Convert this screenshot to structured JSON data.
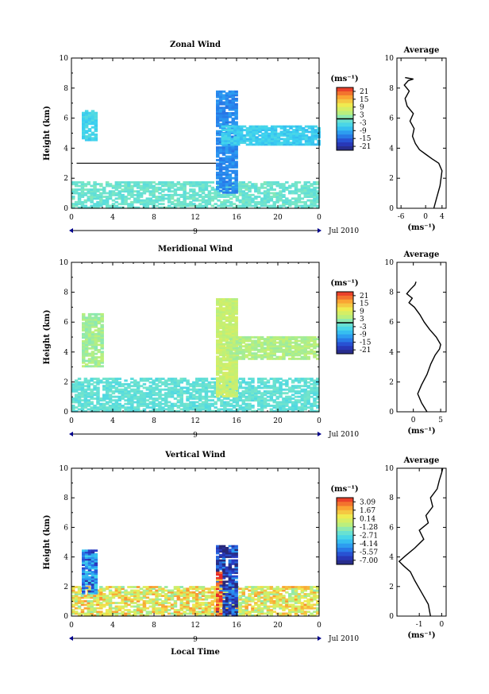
{
  "figure": {
    "xlabel_bottom": "Local Time",
    "date_label": "Jul 2010",
    "day_marker": "9",
    "x_ticks": [
      "0",
      "4",
      "8",
      "12",
      "16",
      "20",
      "0"
    ],
    "unit_label": "(ms⁻¹)"
  },
  "chart_data": [
    {
      "type": "heatmap",
      "title": "Zonal Wind",
      "xlabel": "",
      "ylabel": "Height (km)",
      "xlim": [
        0,
        24
      ],
      "ylim": [
        0,
        10
      ],
      "y_ticks": [
        0,
        2,
        4,
        6,
        8,
        10
      ],
      "colorbar": {
        "ticks": [
          "21",
          "15",
          "9",
          "3",
          "-3",
          "-9",
          "-15",
          "-21"
        ],
        "range": [
          -24,
          24
        ],
        "zero_line": 0
      },
      "reference_line_height": 3.0,
      "features": [
        {
          "x": [
            0,
            24
          ],
          "y": [
            0,
            1.8
          ],
          "value": -1,
          "desc": "low-level band"
        },
        {
          "x": [
            1,
            2.5
          ],
          "y": [
            4.5,
            6.5
          ],
          "value": -5
        },
        {
          "x": [
            14,
            16
          ],
          "y": [
            1,
            7.8
          ],
          "value": -12
        },
        {
          "x": [
            14.5,
            24
          ],
          "y": [
            4.2,
            5.5
          ],
          "value": -6
        }
      ]
    },
    {
      "type": "line",
      "title": "Average",
      "xlabel": "(ms⁻¹)",
      "ylabel": "",
      "xlim": [
        -7,
        5
      ],
      "ylim": [
        0,
        10
      ],
      "x_ticks": [
        -6,
        0,
        4
      ],
      "y_ticks": [
        0,
        2,
        4,
        6,
        8,
        10
      ],
      "profile": {
        "x": [
          2.0,
          2.8,
          3.5,
          4.0,
          3.2,
          1.5,
          0.0,
          -1.5,
          -2.5,
          -3.2,
          -2.8,
          -3.8,
          -3.0,
          -4.5,
          -5.0,
          -4.0,
          -5.2,
          -4.2,
          -3.0,
          -5.0
        ],
        "y": [
          0.0,
          0.8,
          1.5,
          2.5,
          3.0,
          3.3,
          3.6,
          3.9,
          4.3,
          4.8,
          5.3,
          5.8,
          6.3,
          6.8,
          7.3,
          7.8,
          8.2,
          8.5,
          8.6,
          8.7
        ]
      }
    },
    {
      "type": "heatmap",
      "title": "Meridional Wind",
      "xlabel": "",
      "ylabel": "Height (km)",
      "xlim": [
        0,
        24
      ],
      "ylim": [
        0,
        10
      ],
      "y_ticks": [
        0,
        2,
        4,
        6,
        8,
        10
      ],
      "colorbar": {
        "ticks": [
          "21",
          "15",
          "9",
          "3",
          "-3",
          "-9",
          "-15",
          "-21"
        ],
        "range": [
          -24,
          24
        ],
        "zero_line": 0
      },
      "features": [
        {
          "x": [
            0,
            24
          ],
          "y": [
            0,
            2.2
          ],
          "value": -2
        },
        {
          "x": [
            1,
            3
          ],
          "y": [
            3,
            6.5
          ],
          "value": 3
        },
        {
          "x": [
            14,
            16
          ],
          "y": [
            1,
            7.5
          ],
          "value": 6
        },
        {
          "x": [
            15,
            24
          ],
          "y": [
            3.5,
            5
          ],
          "value": 4
        }
      ]
    },
    {
      "type": "line",
      "title": "Average",
      "xlabel": "(ms⁻¹)",
      "ylabel": "",
      "xlim": [
        -3,
        6
      ],
      "ylim": [
        0,
        10
      ],
      "x_ticks": [
        0,
        5
      ],
      "y_ticks": [
        0,
        2,
        4,
        6,
        8,
        10
      ],
      "profile": {
        "x": [
          2.5,
          1.5,
          0.8,
          1.5,
          2.5,
          3.2,
          4.0,
          4.8,
          5.0,
          4.2,
          3.0,
          2.0,
          1.2,
          0.2,
          -0.8,
          -0.2,
          -1.2,
          -0.5,
          0.3,
          0.5
        ],
        "y": [
          0.0,
          0.6,
          1.2,
          1.8,
          2.5,
          3.2,
          3.8,
          4.2,
          4.5,
          5.0,
          5.5,
          6.0,
          6.5,
          7.0,
          7.3,
          7.6,
          7.9,
          8.2,
          8.5,
          8.7
        ]
      }
    },
    {
      "type": "heatmap",
      "title": "Vertical Wind",
      "xlabel": "Local Time",
      "ylabel": "Height (km)",
      "xlim": [
        0,
        24
      ],
      "ylim": [
        0,
        10
      ],
      "y_ticks": [
        0,
        2,
        4,
        6,
        8,
        10
      ],
      "colorbar": {
        "ticks": [
          "3.09",
          "1.67",
          "0.14",
          "-1.28",
          "-2.71",
          "-4.14",
          "-5.57",
          "-7.00"
        ],
        "range": [
          -7.7,
          3.8
        ],
        "zero_line": null
      },
      "features": [
        {
          "x": [
            0,
            24
          ],
          "y": [
            0,
            2
          ],
          "value": 0.3
        },
        {
          "x": [
            1,
            2.5
          ],
          "y": [
            1.5,
            4.5
          ],
          "value": -5
        },
        {
          "x": [
            14,
            16
          ],
          "y": [
            0,
            4.8
          ],
          "value": -6.5
        },
        {
          "x": [
            14,
            14.5
          ],
          "y": [
            0,
            3
          ],
          "value": 3
        }
      ]
    },
    {
      "type": "line",
      "title": "Average",
      "xlabel": "(ms⁻¹)",
      "ylabel": "",
      "xlim": [
        -2,
        0.2
      ],
      "ylim": [
        0,
        10
      ],
      "x_ticks": [
        -1,
        0
      ],
      "y_ticks": [
        0,
        2,
        4,
        6,
        8,
        10
      ],
      "profile": {
        "x": [
          -0.5,
          -0.6,
          -0.9,
          -1.2,
          -1.4,
          -1.7,
          -1.9,
          -1.6,
          -1.2,
          -0.8,
          -1.0,
          -0.6,
          -0.7,
          -0.4,
          -0.5,
          -0.2,
          -0.1,
          0.0,
          0.05
        ],
        "y": [
          0.0,
          0.8,
          1.6,
          2.4,
          3.0,
          3.4,
          3.7,
          4.1,
          4.6,
          5.2,
          5.8,
          6.3,
          6.8,
          7.4,
          8.0,
          8.6,
          9.2,
          9.7,
          10.0
        ]
      }
    }
  ]
}
